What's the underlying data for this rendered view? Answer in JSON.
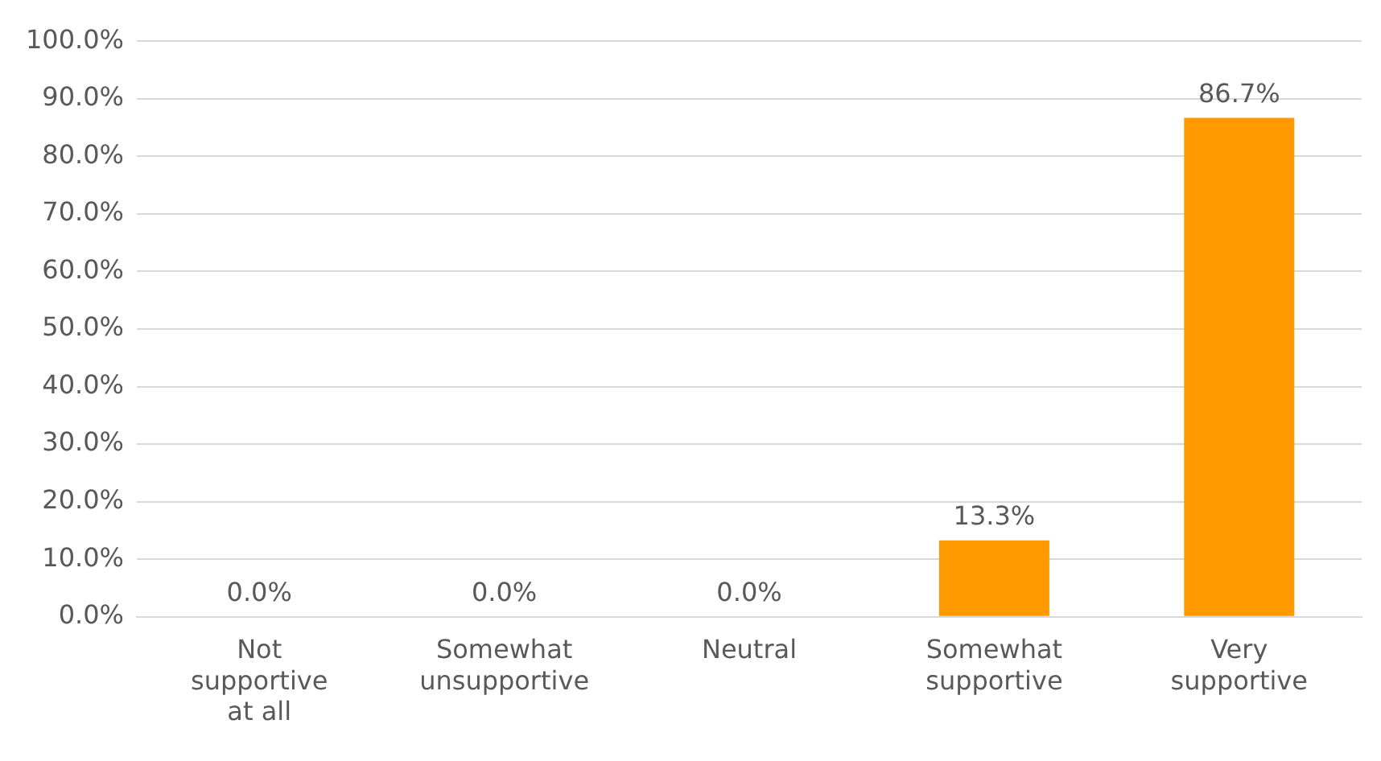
{
  "chart_data": {
    "type": "bar",
    "categories": [
      "Not supportive at all",
      "Somewhat unsupportive",
      "Neutral",
      "Somewhat supportive",
      "Very supportive"
    ],
    "values": [
      0,
      0,
      0,
      13.3,
      86.7
    ],
    "value_labels": [
      "0.0%",
      "0.0%",
      "0.0%",
      "13.3%",
      "86.7%"
    ],
    "color": "#ff9900",
    "ylim": [
      0,
      100
    ],
    "yticks": [
      {
        "value": 0,
        "label": "0.0%"
      },
      {
        "value": 10,
        "label": "10.0%"
      },
      {
        "value": 20,
        "label": "20.0%"
      },
      {
        "value": 30,
        "label": "30.0%"
      },
      {
        "value": 40,
        "label": "40.0%"
      },
      {
        "value": 50,
        "label": "50.0%"
      },
      {
        "value": 60,
        "label": "60.0%"
      },
      {
        "value": 70,
        "label": "70.0%"
      },
      {
        "value": 80,
        "label": "80.0%"
      },
      {
        "value": 90,
        "label": "90.0%"
      },
      {
        "value": 100,
        "label": "100.0%"
      }
    ],
    "grid": "y"
  }
}
